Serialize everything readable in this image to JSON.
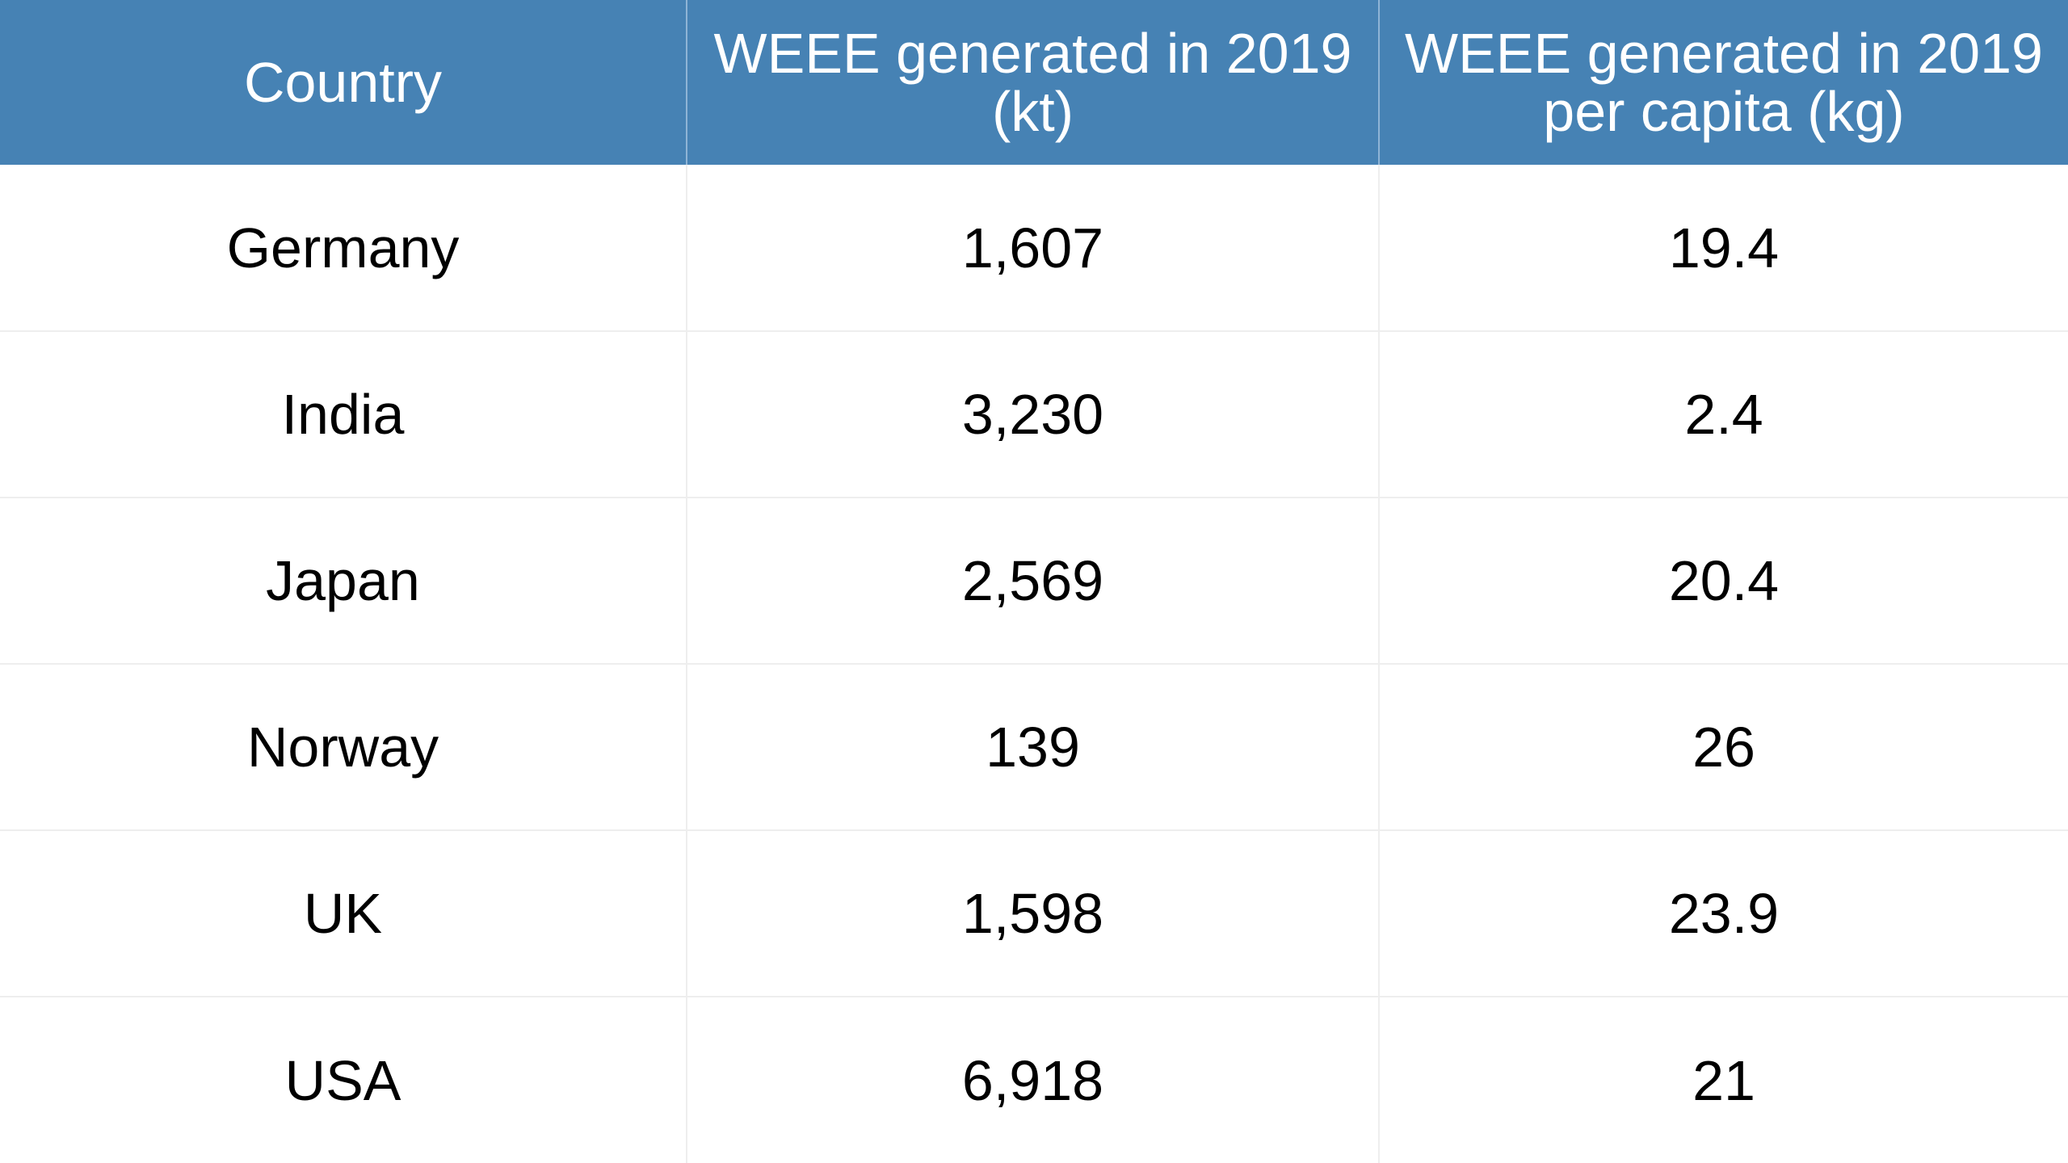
{
  "table": {
    "columns": [
      "Country",
      "WEEE generated in 2019 (kt)",
      "WEEE generated in 2019 per capita (kg)"
    ],
    "rows": [
      [
        "Germany",
        "1,607",
        "19.4"
      ],
      [
        "India",
        "3,230",
        "2.4"
      ],
      [
        "Japan",
        "2,569",
        "20.4"
      ],
      [
        "Norway",
        "139",
        "26"
      ],
      [
        "UK",
        "1,598",
        "23.9"
      ],
      [
        "USA",
        "6,918",
        "21"
      ]
    ]
  },
  "colors": {
    "header_background": "#4682b4",
    "header_text": "#ffffff",
    "cell_text": "#000000",
    "grid_line": "#eeeeee"
  }
}
